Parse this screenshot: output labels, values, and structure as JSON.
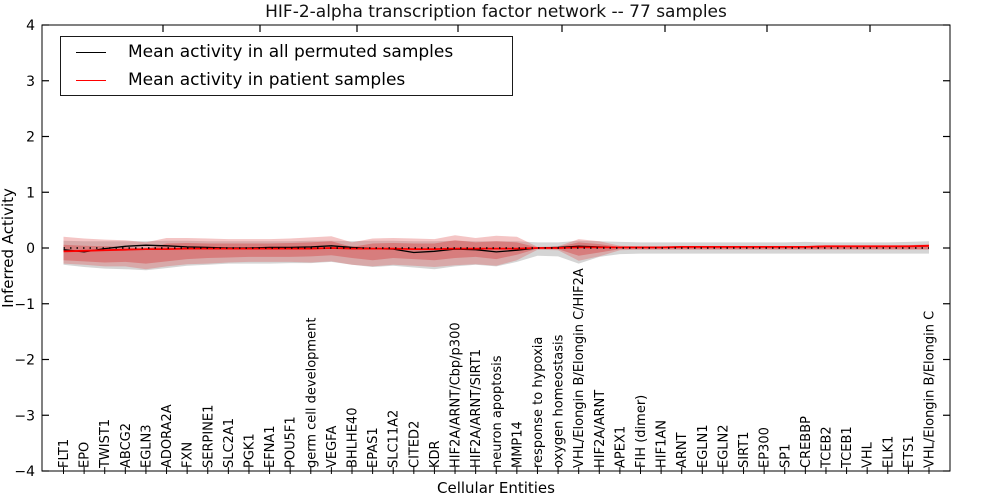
{
  "title": "HIF-2-alpha transcription factor network -- 77 samples",
  "axes": {
    "ylabel": "Inferred Activity",
    "xlabel": "Cellular Entities",
    "ylim": [
      -4,
      4
    ],
    "ytick_values": [
      4,
      3,
      2,
      1,
      0,
      -1,
      -2,
      -3,
      -4
    ],
    "ytick_labels": [
      "4",
      "3",
      "2",
      "1",
      "0",
      "−1",
      "−2",
      "−3",
      "−4"
    ]
  },
  "legend": {
    "items": [
      {
        "label": "Mean activity in all permuted samples",
        "color": "#000000"
      },
      {
        "label": "Mean activity in patient samples",
        "color": "#ff0000"
      }
    ]
  },
  "colors": {
    "permuted_line": "#000000",
    "patient_line": "#ff0000",
    "permuted_band": "#969696",
    "patient_band": "#dd4444",
    "spine": "#000000"
  },
  "chart_data": {
    "type": "line",
    "title": "HIF-2-alpha transcription factor network -- 77 samples",
    "xlabel": "Cellular Entities",
    "ylabel": "Inferred Activity",
    "ylim": [
      -4,
      4
    ],
    "grid": false,
    "legend_position": "upper left",
    "categories": [
      "FLT1",
      "EPO",
      "TWIST1",
      "ABCG2",
      "EGLN3",
      "ADORA2A",
      "FXN",
      "SERPINE1",
      "SLC2A1",
      "PGK1",
      "EFNA1",
      "POU5F1",
      "germ cell development",
      "VEGFA",
      "BHLHE40",
      "EPAS1",
      "SLC11A2",
      "CITED2",
      "KDR",
      "HIF2A/ARNT/Cbp/p300",
      "HIF2A/ARNT/SIRT1",
      "neuron apoptosis",
      "MMP14",
      "response to hypoxia",
      "oxygen homeostasis",
      "VHL/Elongin B/Elongin C/HIF2A",
      "HIF2A/ARNT",
      "APEX1",
      "FIH (dimer)",
      "HIF1AN",
      "ARNT",
      "EGLN1",
      "EGLN2",
      "SIRT1",
      "EP300",
      "SP1",
      "CREBBP",
      "TCEB2",
      "TCEB1",
      "VHL",
      "ELK1",
      "ETS1",
      "VHL/Elongin B/Elongin C"
    ],
    "series": [
      {
        "name": "Mean activity in all permuted samples",
        "color": "#000000",
        "width": 1.3,
        "values": [
          -0.03,
          -0.07,
          -0.01,
          0.03,
          0.05,
          0.04,
          0.02,
          0.01,
          0,
          0,
          0.01,
          0.01,
          0.02,
          0.04,
          0.01,
          -0.01,
          -0.02,
          -0.08,
          -0.06,
          -0.02,
          -0.03,
          -0.07,
          -0.04,
          0,
          0.01,
          0.03,
          0.02,
          0.01,
          0.01,
          0.01,
          0.02,
          0.02,
          0.02,
          0.02,
          0.02,
          0.02,
          0.02,
          0.03,
          0.03,
          0.03,
          0.03,
          0.03,
          0.04
        ]
      },
      {
        "name": "Mean activity in patient samples",
        "color": "#ff0000",
        "width": 1.8,
        "values": [
          -0.06,
          -0.05,
          -0.04,
          -0.03,
          -0.02,
          -0.02,
          -0.01,
          -0.01,
          -0.01,
          -0.01,
          -0.01,
          -0.01,
          -0.01,
          0,
          -0.01,
          -0.01,
          -0.01,
          -0.02,
          -0.02,
          -0.01,
          -0.01,
          -0.01,
          -0.01,
          0,
          0,
          0.01,
          0.01,
          0.01,
          0.01,
          0.01,
          0.02,
          0.02,
          0.02,
          0.02,
          0.02,
          0.02,
          0.02,
          0.03,
          0.03,
          0.03,
          0.03,
          0.03,
          0.04
        ]
      }
    ],
    "bands": [
      {
        "name": "permuted-sample-range",
        "color": "#969696",
        "opacity": 0.4,
        "upper": [
          0.13,
          0.12,
          0.12,
          0.12,
          0.12,
          0.13,
          0.13,
          0.12,
          0.12,
          0.12,
          0.12,
          0.12,
          0.13,
          0.13,
          0.12,
          0.13,
          0.13,
          0.12,
          0.12,
          0.13,
          0.12,
          0.12,
          0.12,
          0.1,
          0.1,
          0.13,
          0.12,
          0.11,
          0.1,
          0.1,
          0.1,
          0.1,
          0.1,
          0.1,
          0.1,
          0.1,
          0.11,
          0.1,
          0.1,
          0.1,
          0.1,
          0.11,
          0.12
        ],
        "lower": [
          -0.3,
          -0.34,
          -0.37,
          -0.38,
          -0.4,
          -0.36,
          -0.32,
          -0.3,
          -0.28,
          -0.28,
          -0.28,
          -0.27,
          -0.27,
          -0.25,
          -0.3,
          -0.34,
          -0.32,
          -0.35,
          -0.38,
          -0.33,
          -0.3,
          -0.33,
          -0.25,
          -0.14,
          -0.15,
          -0.28,
          -0.16,
          -0.11,
          -0.1,
          -0.1,
          -0.1,
          -0.1,
          -0.1,
          -0.1,
          -0.1,
          -0.1,
          -0.1,
          -0.1,
          -0.1,
          -0.1,
          -0.1,
          -0.1,
          -0.1
        ]
      },
      {
        "name": "patient-sample-range-outer",
        "color": "#e05a5a",
        "opacity": 0.35,
        "upper": [
          0.2,
          0.17,
          0.15,
          0.14,
          0.1,
          0.18,
          0.18,
          0.17,
          0.16,
          0.16,
          0.16,
          0.17,
          0.19,
          0.21,
          0.1,
          0.17,
          0.18,
          0.17,
          0.16,
          0.23,
          0.18,
          0.22,
          0.2,
          0.02,
          0.03,
          0.16,
          0.12,
          0.04,
          0.03,
          0.03,
          0.03,
          0.03,
          0.03,
          0.03,
          0.03,
          0.03,
          0.03,
          0.03,
          0.03,
          0.03,
          0.04,
          0.05,
          0.07
        ],
        "lower": [
          -0.28,
          -0.3,
          -0.33,
          -0.33,
          -0.38,
          -0.33,
          -0.29,
          -0.28,
          -0.26,
          -0.25,
          -0.25,
          -0.25,
          -0.26,
          -0.24,
          -0.3,
          -0.33,
          -0.3,
          -0.32,
          -0.34,
          -0.31,
          -0.29,
          -0.32,
          -0.22,
          -0.03,
          -0.04,
          -0.23,
          -0.15,
          -0.04,
          -0.03,
          -0.03,
          -0.03,
          -0.03,
          -0.03,
          -0.03,
          -0.03,
          -0.03,
          -0.03,
          -0.03,
          -0.03,
          -0.03,
          -0.03,
          -0.03,
          -0.03
        ]
      },
      {
        "name": "patient-sample-range-inner",
        "color": "#d83c3c",
        "opacity": 0.4,
        "upper": [
          0.06,
          0.04,
          0.03,
          0.02,
          -0.02,
          0.08,
          0.09,
          0.08,
          0.08,
          0.08,
          0.08,
          0.09,
          0.1,
          0.12,
          0.02,
          0.08,
          0.09,
          0.08,
          0.08,
          0.14,
          0.1,
          0.12,
          0.1,
          0.01,
          0.02,
          0.1,
          0.07,
          0.02,
          0.02,
          0.02,
          0.02,
          0.02,
          0.02,
          0.02,
          0.02,
          0.02,
          0.02,
          0.02,
          0.02,
          0.02,
          0.02,
          0.03,
          0.05
        ],
        "lower": [
          -0.22,
          -0.24,
          -0.26,
          -0.25,
          -0.28,
          -0.24,
          -0.2,
          -0.18,
          -0.17,
          -0.16,
          -0.16,
          -0.16,
          -0.15,
          -0.13,
          -0.18,
          -0.22,
          -0.18,
          -0.2,
          -0.22,
          -0.18,
          -0.16,
          -0.2,
          -0.12,
          -0.01,
          -0.02,
          -0.14,
          -0.08,
          -0.02,
          -0.02,
          -0.02,
          -0.02,
          -0.02,
          -0.02,
          -0.02,
          -0.02,
          -0.02,
          -0.02,
          -0.02,
          -0.02,
          -0.02,
          -0.02,
          -0.02,
          -0.02
        ]
      }
    ],
    "zero_line": {
      "y": 0,
      "style": "dotted",
      "color": "#000000"
    }
  }
}
